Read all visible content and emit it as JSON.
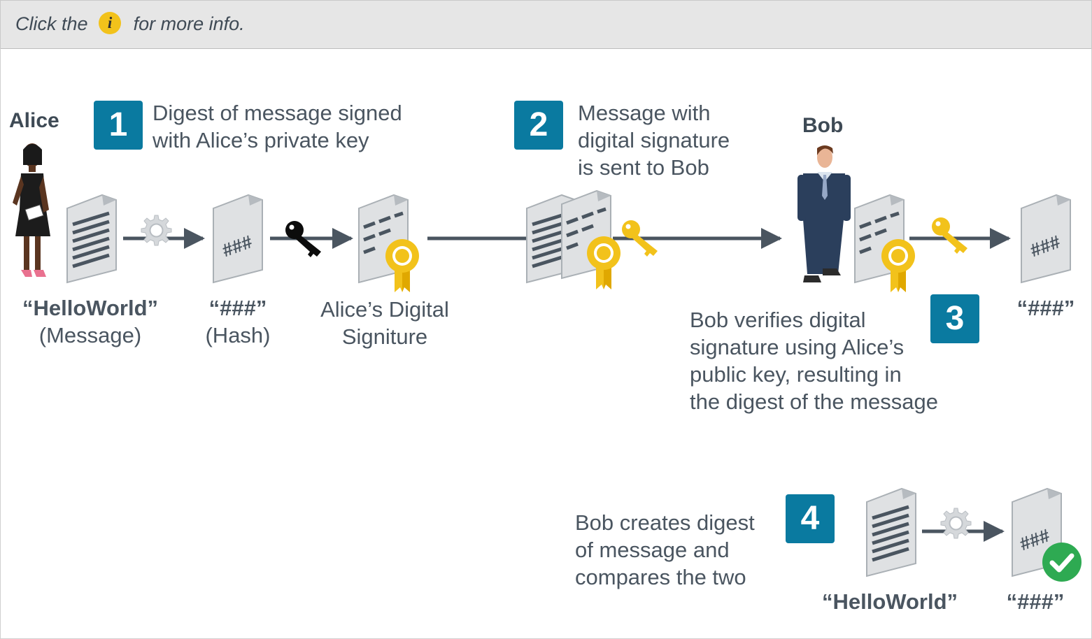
{
  "hint": {
    "before": "Click the",
    "icon_label": "i",
    "after": "for more info."
  },
  "people": {
    "alice": "Alice",
    "bob": "Bob"
  },
  "steps": [
    {
      "number": "1",
      "text_lines": [
        "Digest of message signed",
        "with Alice’s private key"
      ]
    },
    {
      "number": "2",
      "text_lines": [
        "Message with",
        "digital signature",
        "is sent to Bob"
      ]
    },
    {
      "number": "3",
      "text_lines": [
        "Bob verifies digital",
        "signature using Alice’s",
        "public key, resulting in",
        "the digest of the message"
      ]
    },
    {
      "number": "4",
      "text_lines": [
        "Bob creates digest",
        "of message and",
        "compares the two"
      ]
    }
  ],
  "labels": {
    "message_value": "“HelloWorld”",
    "message_caption": "(Message)",
    "hash_value": "“###”",
    "hash_caption": "(Hash)",
    "signature_line1": "Alice’s Digital",
    "signature_line2": "Signiture",
    "bob_hash_value": "“###”",
    "step4_message_value": "“HelloWorld”",
    "step4_hash_value": "“###”"
  },
  "doc_glyph": "###",
  "icons": [
    "info-icon",
    "person-alice-icon",
    "person-bob-icon",
    "document-icon",
    "gear-icon",
    "private-key-icon",
    "public-key-icon",
    "certificate-ribbon-icon",
    "arrow-icon",
    "checkmark-icon"
  ],
  "colors": {
    "step_badge": "#0a7aa0",
    "public_key": "#f2c21b",
    "private_key": "#000000",
    "check": "#2eaa52",
    "arrow": "#4a5560",
    "header": "#e6e6e6"
  }
}
